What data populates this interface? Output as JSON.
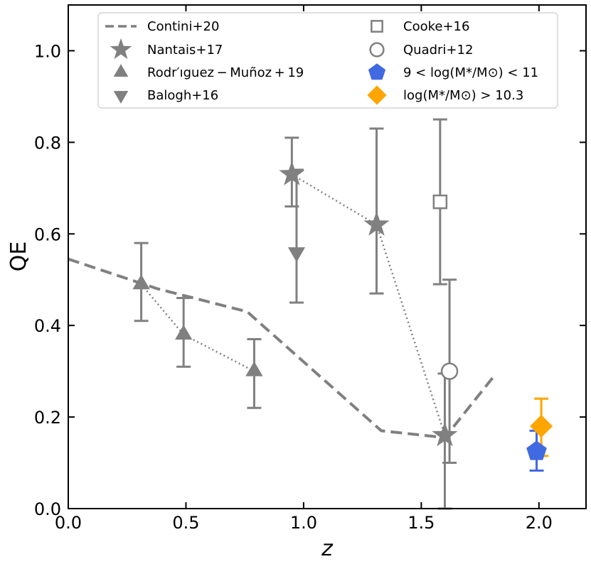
{
  "chart_data": {
    "type": "scatter",
    "xlabel": "z",
    "ylabel": "QE",
    "xlim": [
      0.0,
      2.2
    ],
    "ylim": [
      0.0,
      1.1
    ],
    "xticks": [
      "0.0",
      "0.5",
      "1.0",
      "1.5",
      "2.0"
    ],
    "xtick_values": [
      0.0,
      0.5,
      1.0,
      1.5,
      2.0
    ],
    "yticks": [
      "0.0",
      "0.2",
      "0.4",
      "0.6",
      "0.8",
      "1.0"
    ],
    "ytick_values": [
      0.0,
      0.2,
      0.4,
      0.6,
      0.8,
      1.0
    ],
    "grid": false,
    "legend_position": "top",
    "colors": {
      "gray": "#808080",
      "blue": "#4169e1",
      "orange": "#ffa500"
    },
    "series": [
      {
        "name": "Contini+20",
        "kind": "line",
        "style": "dashed",
        "color": "#808080",
        "points": [
          [
            0.0,
            0.545
          ],
          [
            0.38,
            0.48
          ],
          [
            0.76,
            0.43
          ],
          [
            1.33,
            0.17
          ],
          [
            1.6,
            0.155
          ],
          [
            1.81,
            0.29
          ]
        ]
      },
      {
        "name": "Nantais+17",
        "kind": "marker",
        "marker": "star",
        "color": "#808080",
        "connect": "dotted",
        "points": [
          [
            0.95,
            0.73,
            0.66,
            0.81
          ],
          [
            1.31,
            0.62,
            0.47,
            0.83
          ],
          [
            1.6,
            0.16,
            0.0,
            0.295
          ]
        ]
      },
      {
        "name": "Rodr′ıguez − Muñoz + 19",
        "kind": "marker",
        "marker": "triangle-up",
        "color": "#808080",
        "connect": "dotted",
        "points": [
          [
            0.31,
            0.49,
            0.41,
            0.58
          ],
          [
            0.49,
            0.38,
            0.31,
            0.46
          ],
          [
            0.79,
            0.3,
            0.22,
            0.37
          ]
        ]
      },
      {
        "name": "Balogh+16",
        "kind": "marker",
        "marker": "triangle-down",
        "color": "#808080",
        "points": [
          [
            0.97,
            0.56,
            0.45,
            0.74
          ]
        ]
      },
      {
        "name": "Cooke+16",
        "kind": "marker",
        "marker": "square-open",
        "color": "#808080",
        "points": [
          [
            1.58,
            0.67,
            0.49,
            0.85
          ]
        ]
      },
      {
        "name": "Quadri+12",
        "kind": "marker",
        "marker": "circle-open",
        "color": "#808080",
        "points": [
          [
            1.62,
            0.3,
            0.1,
            0.5
          ]
        ]
      },
      {
        "name": "9 < log(M*/M⊙) < 11",
        "kind": "marker",
        "marker": "pentagon",
        "color": "#4169e1",
        "points": [
          [
            1.99,
            0.125,
            0.083,
            0.17
          ]
        ]
      },
      {
        "name": "log(M*/M⊙) > 10.3",
        "kind": "marker",
        "marker": "diamond",
        "color": "#ffa500",
        "points": [
          [
            2.01,
            0.18,
            0.115,
            0.24
          ]
        ]
      }
    ]
  }
}
